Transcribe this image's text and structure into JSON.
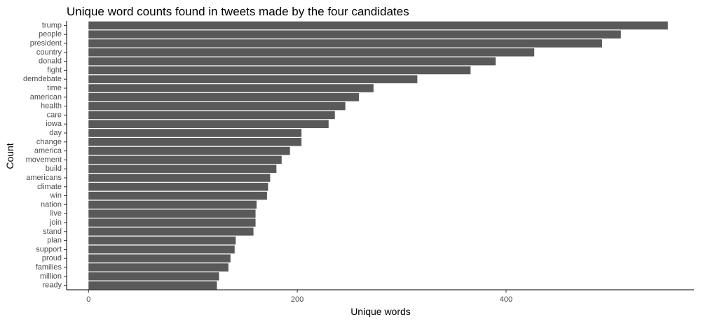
{
  "chart_data": {
    "type": "bar",
    "orientation": "horizontal",
    "title": "Unique word counts found in tweets made by the four candidates",
    "xlabel": "Unique words",
    "ylabel": "Count",
    "xlim": [
      -21,
      580
    ],
    "xticks": [
      0,
      200,
      400
    ],
    "grid": false,
    "bar_color": "#595959",
    "categories": [
      "trump",
      "people",
      "president",
      "country",
      "donald",
      "fight",
      "demdebate",
      "time",
      "american",
      "health",
      "care",
      "iowa",
      "day",
      "change",
      "america",
      "movement",
      "build",
      "americans",
      "climate",
      "win",
      "nation",
      "live",
      "join",
      "stand",
      "plan",
      "support",
      "proud",
      "families",
      "million",
      "ready"
    ],
    "values": [
      555,
      510,
      492,
      427,
      390,
      366,
      315,
      273,
      259,
      246,
      236,
      230,
      204,
      204,
      193,
      185,
      180,
      174,
      172,
      171,
      161,
      160,
      160,
      158,
      141,
      140,
      136,
      134,
      125,
      123
    ]
  }
}
